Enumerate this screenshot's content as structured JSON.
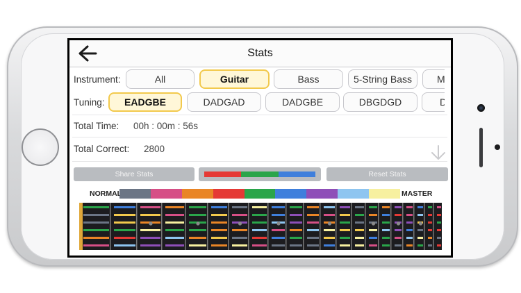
{
  "nav": {
    "title": "Stats",
    "back_icon": "arrow-left-icon"
  },
  "instrument": {
    "label": "Instrument:",
    "options": [
      "All",
      "Guitar",
      "Bass",
      "5-String Bass",
      "M"
    ],
    "selected": "Guitar"
  },
  "tuning": {
    "label": "Tuning:",
    "options": [
      "EADGBE",
      "DADGAD",
      "DADGBE",
      "DBGDGD",
      "D"
    ],
    "selected": "EADGBE"
  },
  "total_time": {
    "label": "Total Time:",
    "value": "00h : 00m : 56s"
  },
  "total_correct": {
    "label": "Total Correct:",
    "value": "2800"
  },
  "scroll_icon": "arrow-down-icon",
  "buttons": {
    "share": "Share Stats",
    "reset": "Reset Stats"
  },
  "progress_colors": [
    "#e53935",
    "#2aa54a",
    "#3f7fdc"
  ],
  "legend": {
    "low_label": "NORMAL",
    "high_label": "MASTER",
    "colors": [
      "#6b7585",
      "#d64f86",
      "#e98526",
      "#e53935",
      "#2aa54a",
      "#3f7fdc",
      "#8e4fb8",
      "#8ec5f0",
      "#f7f0a0"
    ]
  }
}
